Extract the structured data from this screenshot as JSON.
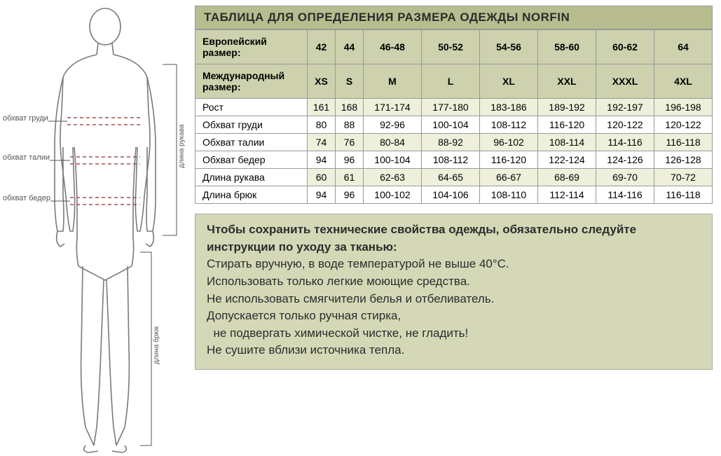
{
  "figure": {
    "labels": {
      "chest": "обхват груди",
      "waist": "обхват талии",
      "hips": "обхват бедер",
      "sleeve": "длина рукава",
      "pants": "длина брюк"
    },
    "colors": {
      "outline": "#7a7a7a",
      "measure_line": "#a05050",
      "label_text": "#555555"
    }
  },
  "table": {
    "title": "ТАБЛИЦА ДЛЯ ОПРЕДЕЛЕНИЯ РАЗМЕРА ОДЕЖДЫ NORFIN",
    "colors": {
      "title_bg": "#b7bd8e",
      "header_bg": "#cdd1ad",
      "stripe_bg": "#eef0db",
      "border": "#999999",
      "text": "#2c2c2c"
    },
    "header1_label": "Европейский размер:",
    "header1_values": [
      "42",
      "44",
      "46-48",
      "50-52",
      "54-56",
      "58-60",
      "60-62",
      "64"
    ],
    "header2_label": "Международный размер:",
    "header2_values": [
      "XS",
      "S",
      "M",
      "L",
      "XL",
      "XXL",
      "XXXL",
      "4XL"
    ],
    "rows": [
      {
        "label": "Рост",
        "values": [
          "161",
          "168",
          "171-174",
          "177-180",
          "183-186",
          "189-192",
          "192-197",
          "196-198"
        ]
      },
      {
        "label": "Обхват груди",
        "values": [
          "80",
          "88",
          "92-96",
          "100-104",
          "108-112",
          "116-120",
          "120-122",
          "120-122"
        ]
      },
      {
        "label": "Обхват талии",
        "values": [
          "74",
          "76",
          "80-84",
          "88-92",
          "96-102",
          "108-114",
          "114-116",
          "116-118"
        ]
      },
      {
        "label": "Обхват бедер",
        "values": [
          "94",
          "96",
          "100-104",
          "108-112",
          "116-120",
          "122-124",
          "124-126",
          "126-128"
        ]
      },
      {
        "label": "Длина рукава",
        "values": [
          "60",
          "61",
          "62-63",
          "64-65",
          "66-67",
          "68-69",
          "69-70",
          "70-72"
        ]
      },
      {
        "label": "Длина брюк",
        "values": [
          "94",
          "96",
          "100-102",
          "104-106",
          "108-110",
          "112-114",
          "114-116",
          "116-118"
        ]
      }
    ]
  },
  "instructions": {
    "bg": "#d5d8b6",
    "lead": "Чтобы сохранить технические свойства одежды, обязательно следуйте инструкции по уходу за тканью:",
    "lines": [
      "Стирать вручную, в воде температурой не выше 40°С.",
      "Использовать только легкие моющие средства.",
      "Не использовать смягчители белья и отбеливатель.",
      "Допускается только ручная стирка,",
      "  не подвергать химической чистке, не гладить!",
      "Не сушите вблизи источника тепла."
    ]
  }
}
